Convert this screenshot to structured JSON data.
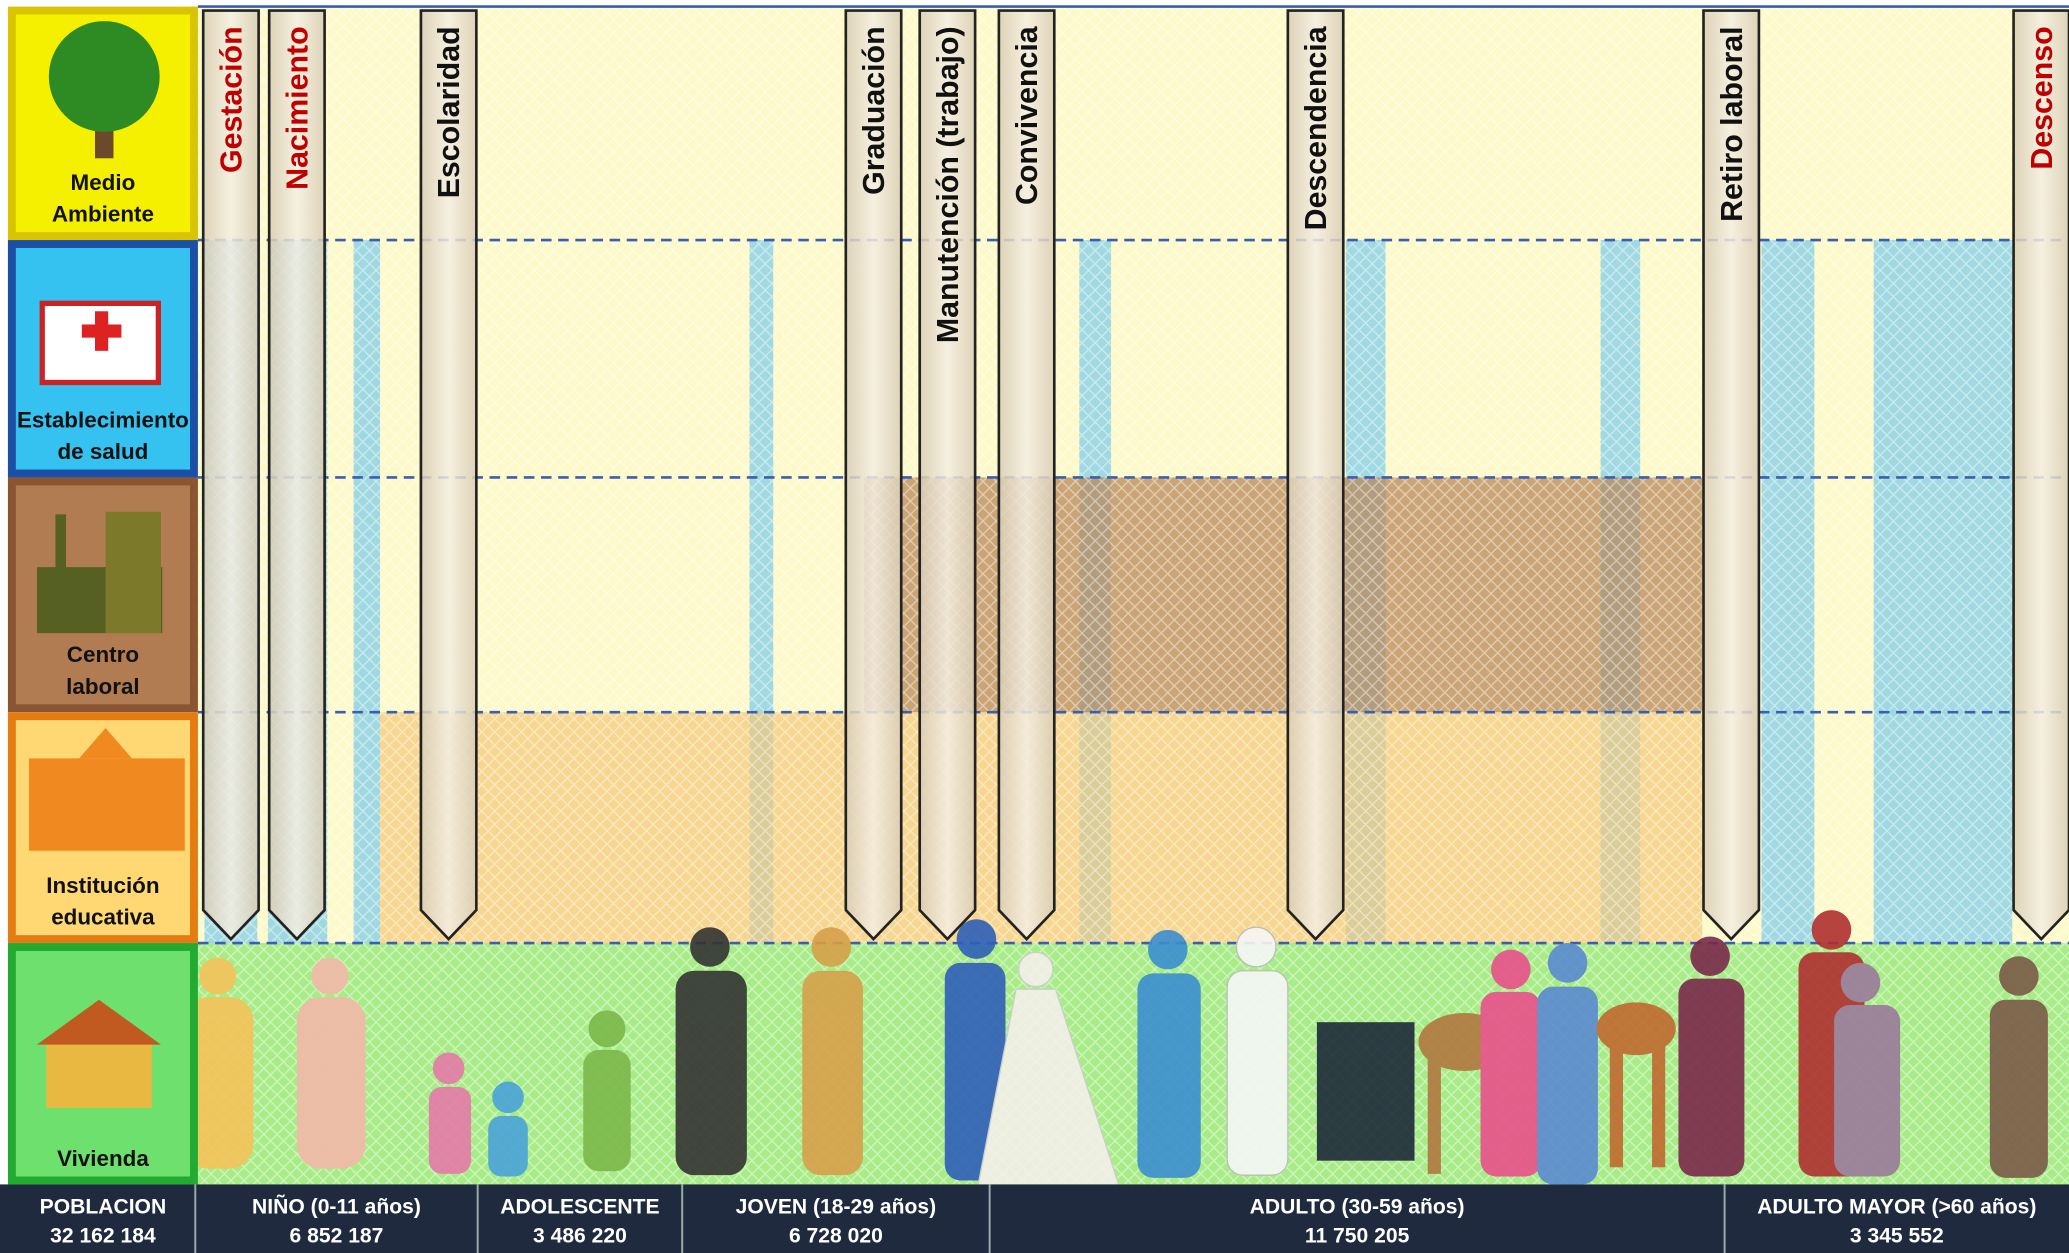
{
  "sections": [
    {
      "lines": [
        "Medio",
        "Ambiente"
      ],
      "fill": "#f5ef00",
      "border": "#d8c400"
    },
    {
      "lines": [
        "Establecimiento",
        "de salud"
      ],
      "fill": "#36c2f0",
      "border": "#1c4fa6"
    },
    {
      "lines": [
        "Centro",
        "laboral"
      ],
      "fill": "#b27c52",
      "border": "#8a5530"
    },
    {
      "lines": [
        "Institución",
        "educativa"
      ],
      "fill": "#ffd874",
      "border": "#e57c12"
    },
    {
      "lines": [
        "Vivienda"
      ],
      "fill": "#6ee06e",
      "border": "#22aa33"
    }
  ],
  "milestones": [
    {
      "label": "Gestación",
      "color": "#c00000"
    },
    {
      "label": "Nacimiento",
      "color": "#c00000"
    },
    {
      "label": "Escolaridad",
      "color": "#111111"
    },
    {
      "label": "Graduación",
      "color": "#111111"
    },
    {
      "label": "Manutención (trabajo)",
      "color": "#111111"
    },
    {
      "label": "Convivencia",
      "color": "#111111"
    },
    {
      "label": "Descendencia",
      "color": "#111111"
    },
    {
      "label": "Retiro laboral",
      "color": "#111111"
    },
    {
      "label": "Descenso",
      "color": "#c00000"
    }
  ],
  "stages": [
    {
      "name": "POBLACION",
      "population": "32 162 184"
    },
    {
      "name": "NIÑO (0-11 años)",
      "population": "6 852 187"
    },
    {
      "name": "ADOLESCENTE",
      "population": "3 486 220"
    },
    {
      "name": "JOVEN (18-29 años)",
      "population": "6 728 020"
    },
    {
      "name": "ADULTO (30-59 años)",
      "population": "11 750 205"
    },
    {
      "name": "ADULTO MAYOR (>60 años)",
      "population": "3 345 552"
    }
  ]
}
